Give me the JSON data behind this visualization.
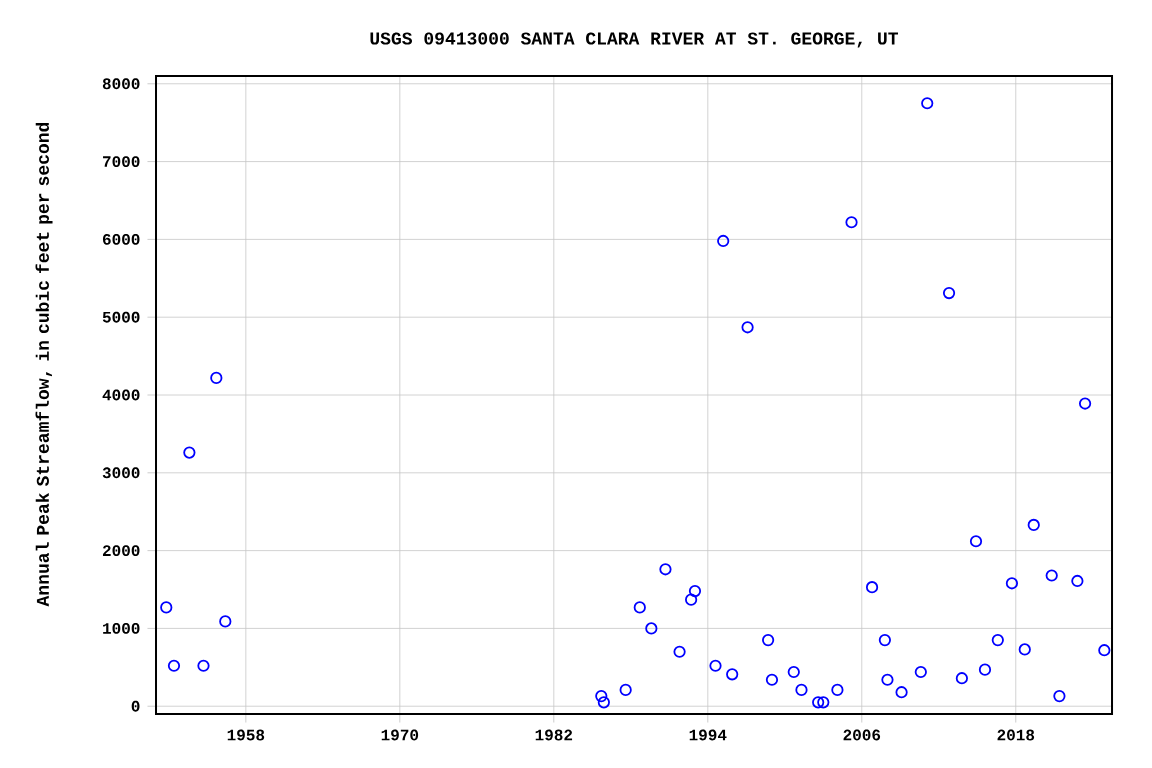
{
  "chart_data": {
    "type": "scatter",
    "title": "USGS 09413000 SANTA CLARA RIVER AT ST. GEORGE, UT",
    "ylabel": "Annual Peak Streamflow, in cubic feet per second",
    "x": [
      1951.8,
      1952.4,
      1953.6,
      1954.7,
      1955.7,
      1956.4,
      1985.7,
      1985.9,
      1987.6,
      1988.7,
      1989.6,
      1990.7,
      1991.8,
      1992.7,
      1993.0,
      1994.6,
      1995.2,
      1995.9,
      1997.1,
      1998.7,
      1999.0,
      2000.7,
      2001.3,
      2002.6,
      2003.0,
      2004.1,
      2005.2,
      2006.8,
      2007.8,
      2008.0,
      2009.1,
      2010.6,
      2011.1,
      2012.8,
      2013.8,
      2014.9,
      2015.6,
      2016.6,
      2017.7,
      2018.7,
      2019.4,
      2020.8,
      2021.4,
      2022.8,
      2023.4,
      2024.9
    ],
    "values": [
      1270,
      520,
      3260,
      520,
      4220,
      1090,
      130,
      50,
      210,
      1270,
      1000,
      1760,
      700,
      1370,
      1480,
      520,
      5980,
      410,
      4870,
      850,
      340,
      440,
      210,
      50,
      50,
      210,
      6220,
      1530,
      850,
      340,
      180,
      440,
      7750,
      5310,
      360,
      2120,
      470,
      850,
      1580,
      730,
      2330,
      1680,
      130,
      1610,
      3890,
      720
    ],
    "color": "#0000ff",
    "marker": "circle",
    "grid": true,
    "xlim": [
      1951,
      2025.5
    ],
    "xticks": [
      1958,
      1970,
      1982,
      1994,
      2006,
      2018
    ],
    "ylim": [
      -100,
      8100
    ],
    "yticks": [
      0,
      1000,
      2000,
      3000,
      4000,
      5000,
      6000,
      7000,
      8000
    ]
  }
}
